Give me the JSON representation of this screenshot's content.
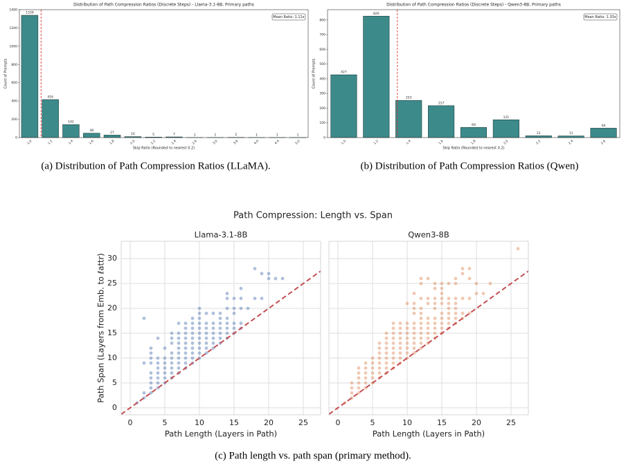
{
  "chart_data": [
    {
      "type": "bar",
      "title": "Distribution of Path Compression Ratios (Discrete Steps) - Llama-3.1-8B, Primary paths",
      "xlabel": "Skip Ratio (Rounded to nearest 0.2)",
      "ylabel": "Count of Prompts",
      "categories": [
        "1.0",
        "1.2",
        "1.4",
        "1.6",
        "1.8",
        "2.0",
        "2.2",
        "2.4",
        "2.6",
        "3.0",
        "3.6",
        "4.0",
        "4.4",
        "5.0"
      ],
      "values": [
        1339,
        416,
        142,
        48,
        27,
        10,
        5,
        7,
        1,
        1,
        2,
        1,
        1,
        1
      ],
      "color": "#3d8a8a",
      "ylim": [
        0,
        1400
      ],
      "yticks": [
        0,
        200,
        400,
        600,
        800,
        1000,
        1200,
        1400
      ],
      "mean": {
        "value": 1.11,
        "label": "Mean Ratio: 1.11x"
      },
      "caption": "(a) Distribution of Path Compression Ratios (LLaMA)."
    },
    {
      "type": "bar",
      "title": "Distribution of Path Compression Ratios (Discrete Steps) - Qwen3-8B, Primary paths",
      "xlabel": "Skip Ratio (Rounded to nearest 0.2)",
      "ylabel": "Count of Prompts",
      "categories": [
        "1.0",
        "1.2",
        "1.4",
        "1.6",
        "1.8",
        "2.0",
        "2.2",
        "2.4",
        "2.6"
      ],
      "values": [
        427,
        826,
        253,
        217,
        69,
        121,
        12,
        11,
        64
      ],
      "color": "#3d8a8a",
      "ylim": [
        0,
        870
      ],
      "yticks": [
        0,
        100,
        200,
        300,
        400,
        500,
        600,
        700,
        800
      ],
      "mean": {
        "value": 1.33,
        "label": "Mean Ratio: 1.33x"
      },
      "caption": "(b) Distribution of Path Compression Ratios (Qwen)"
    },
    {
      "type": "scatter",
      "title": "Path Compression: Length vs. Span",
      "xlabel": "Path Length (Layers in Path)",
      "ylabel": "Path Span (Layers from Emb. to ℓattr)",
      "xlim": [
        -1.3,
        27.5
      ],
      "ylim": [
        -1.4,
        33.5
      ],
      "xticks": [
        0,
        5,
        10,
        15,
        20,
        25
      ],
      "yticks": [
        0,
        5,
        10,
        15,
        20,
        25,
        30
      ],
      "grid": true,
      "diagonal": true,
      "panels": [
        {
          "title": "Llama-3.1-8B",
          "color": "#4c72b0",
          "x": [
            1,
            2,
            2,
            2,
            2,
            3,
            3,
            3,
            3,
            3,
            3,
            3,
            3,
            3,
            4,
            4,
            4,
            4,
            4,
            4,
            4,
            4,
            5,
            5,
            5,
            5,
            5,
            5,
            5,
            6,
            6,
            6,
            6,
            6,
            6,
            6,
            6,
            6,
            7,
            7,
            7,
            7,
            7,
            7,
            7,
            7,
            7,
            7,
            8,
            8,
            8,
            8,
            8,
            8,
            8,
            8,
            8,
            8,
            9,
            9,
            9,
            9,
            9,
            9,
            9,
            9,
            9,
            9,
            10,
            10,
            10,
            10,
            10,
            10,
            10,
            10,
            10,
            10,
            10,
            11,
            11,
            11,
            11,
            11,
            11,
            11,
            11,
            12,
            12,
            12,
            12,
            12,
            12,
            12,
            13,
            13,
            13,
            13,
            13,
            13,
            13,
            14,
            14,
            14,
            14,
            14,
            14,
            14,
            14,
            15,
            15,
            15,
            15,
            15,
            15,
            16,
            16,
            16,
            16,
            16,
            17,
            18,
            18,
            19,
            19,
            20,
            20,
            21,
            22
          ],
          "y": [
            1,
            2,
            3,
            9,
            18,
            3,
            4,
            5,
            6,
            7,
            9,
            10,
            11,
            12,
            4,
            5,
            6,
            7,
            8,
            9,
            10,
            14,
            5,
            6,
            7,
            8,
            9,
            10,
            12,
            6,
            7,
            8,
            9,
            10,
            11,
            13,
            14,
            15,
            7,
            8,
            9,
            10,
            11,
            12,
            13,
            14,
            15,
            17,
            8,
            9,
            10,
            11,
            12,
            13,
            14,
            15,
            16,
            17,
            9,
            10,
            11,
            12,
            13,
            14,
            15,
            16,
            17,
            18,
            10,
            11,
            12,
            13,
            14,
            15,
            16,
            17,
            18,
            19,
            20,
            11,
            12,
            13,
            14,
            15,
            16,
            17,
            19,
            12,
            13,
            14,
            15,
            16,
            17,
            19,
            13,
            14,
            15,
            16,
            17,
            18,
            19,
            14,
            15,
            16,
            17,
            18,
            20,
            22,
            23,
            15,
            16,
            17,
            19,
            20,
            22,
            16,
            17,
            20,
            22,
            24,
            20,
            22,
            28,
            22,
            27,
            26,
            27,
            26,
            26
          ]
        },
        {
          "title": "Qwen3-8B",
          "color": "#dd8452",
          "x": [
            1,
            2,
            2,
            2,
            2,
            3,
            3,
            3,
            3,
            3,
            3,
            4,
            4,
            4,
            4,
            4,
            4,
            5,
            5,
            5,
            5,
            5,
            5,
            6,
            6,
            6,
            6,
            6,
            6,
            6,
            6,
            7,
            7,
            7,
            7,
            7,
            7,
            7,
            7,
            7,
            8,
            8,
            8,
            8,
            8,
            8,
            8,
            8,
            8,
            8,
            9,
            9,
            9,
            9,
            9,
            9,
            9,
            9,
            9,
            10,
            10,
            10,
            10,
            10,
            10,
            10,
            10,
            10,
            11,
            11,
            11,
            11,
            11,
            11,
            11,
            11,
            11,
            11,
            11,
            12,
            12,
            12,
            12,
            12,
            12,
            12,
            12,
            12,
            12,
            12,
            12,
            13,
            13,
            13,
            13,
            13,
            13,
            13,
            13,
            13,
            14,
            14,
            14,
            14,
            14,
            14,
            14,
            14,
            14,
            14,
            15,
            15,
            15,
            15,
            15,
            15,
            15,
            15,
            15,
            15,
            16,
            16,
            16,
            16,
            16,
            16,
            16,
            16,
            17,
            17,
            17,
            17,
            17,
            17,
            17,
            17,
            18,
            18,
            18,
            18,
            18,
            19,
            19,
            19,
            19,
            20,
            20,
            21,
            22,
            26
          ],
          "y": [
            1,
            2,
            3,
            4,
            5,
            3,
            4,
            5,
            6,
            7,
            8,
            4,
            5,
            6,
            7,
            8,
            9,
            5,
            6,
            7,
            8,
            9,
            10,
            6,
            7,
            8,
            9,
            10,
            11,
            12,
            13,
            7,
            8,
            9,
            10,
            11,
            12,
            13,
            14,
            15,
            8,
            9,
            10,
            11,
            12,
            13,
            14,
            15,
            16,
            17,
            9,
            10,
            11,
            12,
            13,
            14,
            15,
            16,
            17,
            10,
            11,
            12,
            13,
            14,
            15,
            16,
            17,
            21,
            11,
            12,
            13,
            14,
            15,
            16,
            17,
            19,
            20,
            21,
            23,
            12,
            13,
            14,
            15,
            16,
            17,
            18,
            19,
            20,
            22,
            25,
            26,
            13,
            14,
            15,
            16,
            17,
            18,
            21,
            22,
            26,
            14,
            15,
            16,
            17,
            18,
            20,
            21,
            22,
            24,
            25,
            15,
            16,
            17,
            18,
            19,
            21,
            22,
            23,
            24,
            25,
            16,
            17,
            18,
            19,
            20,
            21,
            22,
            25,
            17,
            18,
            19,
            20,
            21,
            22,
            25,
            26,
            18,
            19,
            22,
            27,
            28,
            19,
            22,
            26,
            28,
            23,
            25,
            23,
            25,
            32
          ]
        }
      ],
      "caption": "(c) Path length vs. path span (primary method)."
    }
  ]
}
